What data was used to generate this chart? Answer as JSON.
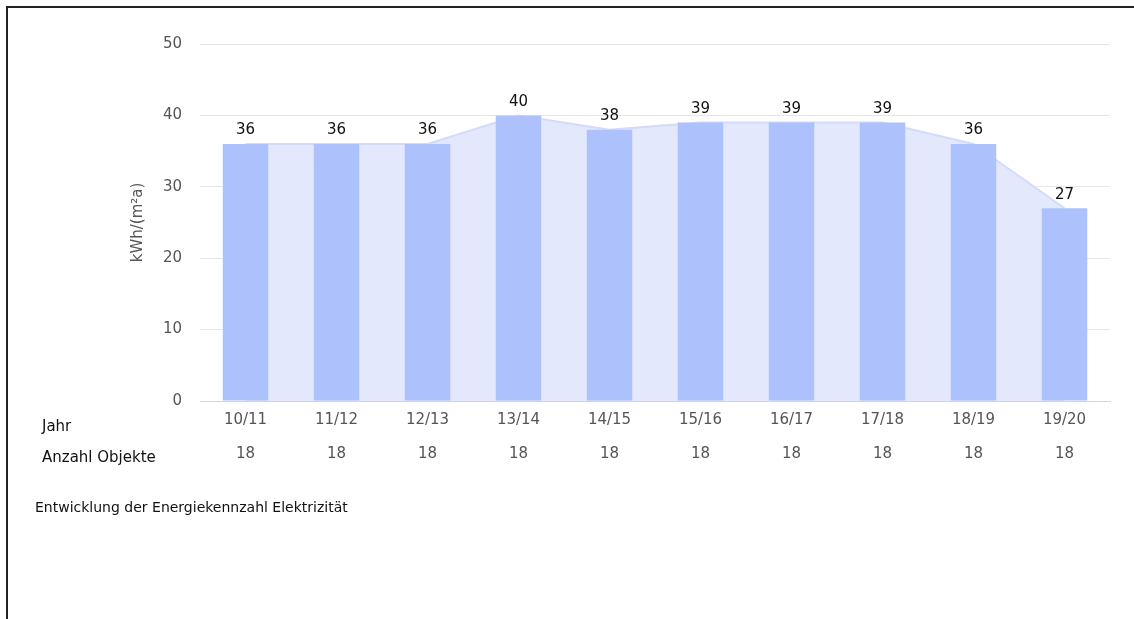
{
  "chart_data": {
    "type": "bar",
    "ylabel": "kWh/(m²a)",
    "categories": [
      "10/11",
      "11/12",
      "12/13",
      "13/14",
      "14/15",
      "15/16",
      "16/17",
      "17/18",
      "18/19",
      "19/20"
    ],
    "series": [
      {
        "type": "area",
        "color": "#e3e8fd",
        "values": [
          36,
          36,
          36,
          40,
          38,
          39,
          39,
          39,
          36,
          27
        ]
      },
      {
        "color": "#adc2fd",
        "values": [
          36,
          36,
          36,
          40,
          38,
          39,
          39,
          39,
          36,
          27
        ],
        "value_labels": [
          "36",
          "36",
          "36",
          "40",
          "38",
          "39",
          "39",
          "39",
          "36",
          "27"
        ]
      }
    ],
    "ylim": [
      0,
      50
    ],
    "yticks": [
      0,
      10,
      20,
      30,
      40,
      50
    ],
    "grid": "y",
    "legend": false,
    "annotations": [
      "Jahr",
      "Anzahl Objekte",
      "Entwicklung der Energiekennzahl Elektrizität",
      "18",
      "18",
      "18",
      "18",
      "18",
      "18",
      "18",
      "18",
      "18",
      "18"
    ]
  }
}
